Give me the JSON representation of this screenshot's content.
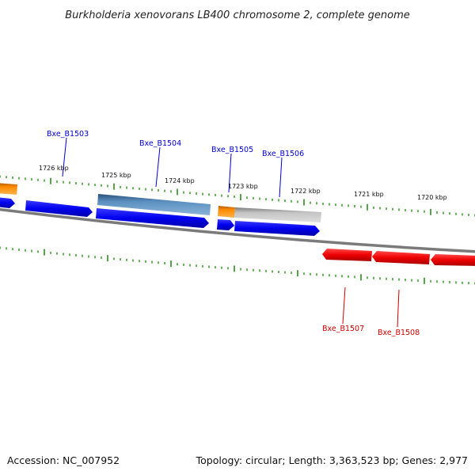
{
  "title": "Burkholderia xenovorans LB400 chromosome 2, complete genome",
  "footer": {
    "accession": "Accession: NC_007952",
    "topology": "Topology: circular; Length: 3,363,523 bp; Genes: 2,977"
  },
  "colors": {
    "backbone": "#7a7a7a",
    "tick": "#2e8b20",
    "forward_gene": "#0000ee",
    "reverse_gene": "#ee0000",
    "forward_label": "#0000cc",
    "reverse_label": "#cc0000",
    "blue_feature": "#5b8fbf",
    "orange_feature": "#ff8c00",
    "grey_feature": "#c0c0c0"
  },
  "kbp_labels": [
    "1726 kbp",
    "1725 kbp",
    "1724 kbp",
    "1723 kbp",
    "1722 kbp",
    "1721 kbp",
    "1720 kbp"
  ],
  "gene_labels": [
    {
      "name": "Bxe_B1503",
      "strand": "forward"
    },
    {
      "name": "Bxe_B1504",
      "strand": "forward"
    },
    {
      "name": "Bxe_B1505",
      "strand": "forward"
    },
    {
      "name": "Bxe_B1506",
      "strand": "forward"
    },
    {
      "name": "Bxe_B1507",
      "strand": "reverse"
    },
    {
      "name": "Bxe_B1508",
      "strand": "reverse"
    }
  ]
}
